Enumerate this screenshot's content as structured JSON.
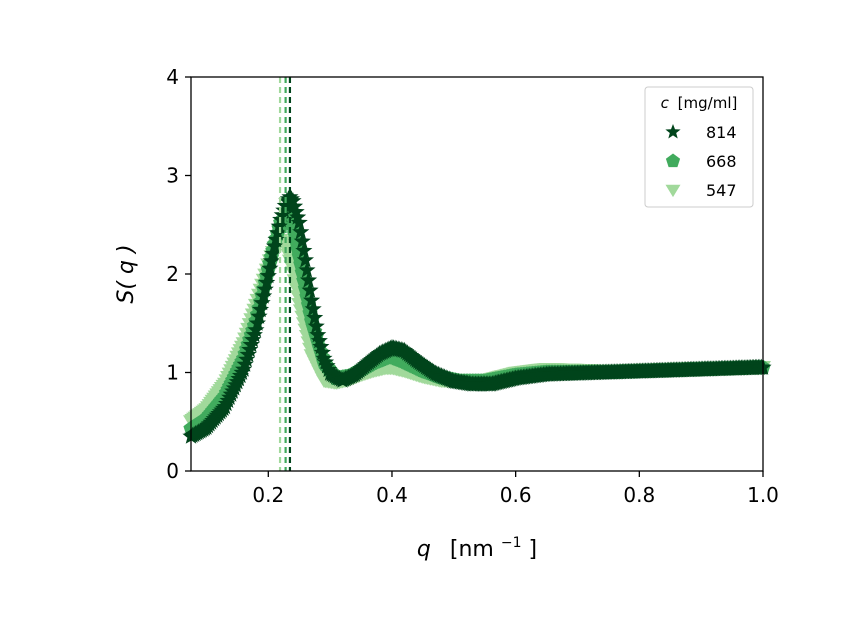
{
  "chart_data": {
    "type": "scatter",
    "title": "",
    "xlabel": {
      "var": "q",
      "units": "[nm",
      "exp": "−1",
      "close": "]"
    },
    "ylabel": {
      "pre": "S(",
      "var": "q",
      "post": ")"
    },
    "xlim": [
      0.075,
      1.0
    ],
    "ylim": [
      0,
      4
    ],
    "xticks": [
      0.2,
      0.4,
      0.6,
      0.8,
      1.0
    ],
    "xtick_labels": [
      "0.2",
      "0.4",
      "0.6",
      "0.8",
      "1.0"
    ],
    "yticks": [
      0,
      1,
      2,
      3,
      4
    ],
    "ytick_labels": [
      "0",
      "1",
      "2",
      "3",
      "4"
    ],
    "grid": false,
    "legend": {
      "placement": "top-right",
      "title_var": "c",
      "title_units": "[mg/ml]"
    },
    "series": [
      {
        "name": "547",
        "marker": "triangle-down",
        "color": "#a1d99b",
        "peak_line_x": 0.219,
        "x": [
          0.075,
          0.1,
          0.13,
          0.16,
          0.18,
          0.2,
          0.21,
          0.22,
          0.23,
          0.24,
          0.25,
          0.27,
          0.29,
          0.31,
          0.33,
          0.35,
          0.37,
          0.39,
          0.4,
          0.42,
          0.45,
          0.48,
          0.51,
          0.55,
          0.6,
          0.65,
          0.7,
          0.75,
          0.8,
          0.9,
          1.0
        ],
        "y": [
          0.51,
          0.63,
          0.89,
          1.3,
          1.69,
          2.1,
          2.27,
          2.35,
          2.26,
          2.02,
          1.7,
          1.18,
          0.92,
          0.9,
          0.93,
          0.98,
          1.02,
          1.05,
          1.05,
          1.02,
          0.96,
          0.92,
          0.91,
          0.92,
          1.0,
          1.04,
          1.03,
          1.02,
          1.03,
          1.05,
          1.06
        ]
      },
      {
        "name": "668",
        "marker": "pentagon",
        "color": "#41ab5d",
        "peak_line_x": 0.228,
        "x": [
          0.075,
          0.1,
          0.13,
          0.16,
          0.18,
          0.2,
          0.21,
          0.22,
          0.23,
          0.24,
          0.25,
          0.27,
          0.29,
          0.31,
          0.33,
          0.35,
          0.37,
          0.39,
          0.4,
          0.42,
          0.45,
          0.48,
          0.51,
          0.55,
          0.6,
          0.65,
          0.7,
          0.75,
          0.8,
          0.9,
          1.0
        ],
        "y": [
          0.43,
          0.53,
          0.76,
          1.14,
          1.52,
          2.04,
          2.3,
          2.52,
          2.6,
          2.48,
          2.18,
          1.52,
          1.1,
          0.94,
          0.96,
          1.03,
          1.1,
          1.15,
          1.16,
          1.11,
          1.02,
          0.95,
          0.91,
          0.91,
          0.97,
          1.0,
          1.0,
          1.0,
          1.01,
          1.03,
          1.05
        ]
      },
      {
        "name": "814",
        "marker": "star",
        "color": "#00441b",
        "peak_line_x": 0.235,
        "x": [
          0.075,
          0.1,
          0.13,
          0.16,
          0.18,
          0.2,
          0.21,
          0.22,
          0.23,
          0.235,
          0.24,
          0.25,
          0.26,
          0.27,
          0.28,
          0.29,
          0.3,
          0.32,
          0.34,
          0.36,
          0.38,
          0.4,
          0.42,
          0.44,
          0.47,
          0.5,
          0.53,
          0.56,
          0.6,
          0.65,
          0.7,
          0.75,
          0.8,
          0.9,
          1.0
        ],
        "y": [
          0.35,
          0.44,
          0.65,
          1.03,
          1.43,
          1.98,
          2.28,
          2.55,
          2.74,
          2.78,
          2.74,
          2.52,
          2.14,
          1.73,
          1.38,
          1.14,
          0.99,
          0.92,
          0.98,
          1.09,
          1.19,
          1.25,
          1.22,
          1.12,
          0.99,
          0.91,
          0.88,
          0.88,
          0.94,
          0.98,
          0.99,
          1.0,
          1.01,
          1.03,
          1.05
        ]
      }
    ]
  }
}
